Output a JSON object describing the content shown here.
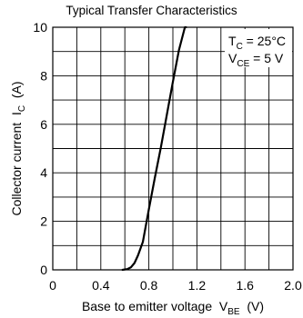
{
  "chart_data": {
    "type": "line",
    "title": "Typical Transfer Characteristics",
    "xlabel": {
      "main": "Base to emitter voltage  V",
      "sub": "BE",
      "unit": "  (V)"
    },
    "ylabel": {
      "main": "Collector current  I",
      "sub": "C",
      "unit": "  (A)"
    },
    "xlim": [
      0,
      2.0
    ],
    "ylim": [
      0,
      10
    ],
    "x_ticks": [
      0,
      0.4,
      0.8,
      1.2,
      1.6,
      2.0
    ],
    "x_tick_labels": [
      "0",
      "0.4",
      "0.8",
      "1.2",
      "1.6",
      "2.0"
    ],
    "y_ticks": [
      0,
      2,
      4,
      6,
      8,
      10
    ],
    "y_tick_labels": [
      "0",
      "2",
      "4",
      "6",
      "8",
      "10"
    ],
    "grid": true,
    "annotations": [
      {
        "main": "T",
        "sub": "C",
        "rest": " = 25°C"
      },
      {
        "main": "V",
        "sub": "CE",
        "rest": " = 5 V"
      }
    ],
    "series": [
      {
        "x": [
          0.58,
          0.62,
          0.65,
          0.68,
          0.71,
          0.75,
          0.8,
          0.85,
          0.9,
          0.95,
          1.0,
          1.05,
          1.1,
          1.11
        ],
        "y": [
          0.0,
          0.03,
          0.1,
          0.28,
          0.6,
          1.15,
          2.5,
          3.8,
          5.05,
          6.4,
          7.75,
          9.05,
          10.0,
          10.0
        ]
      }
    ]
  }
}
